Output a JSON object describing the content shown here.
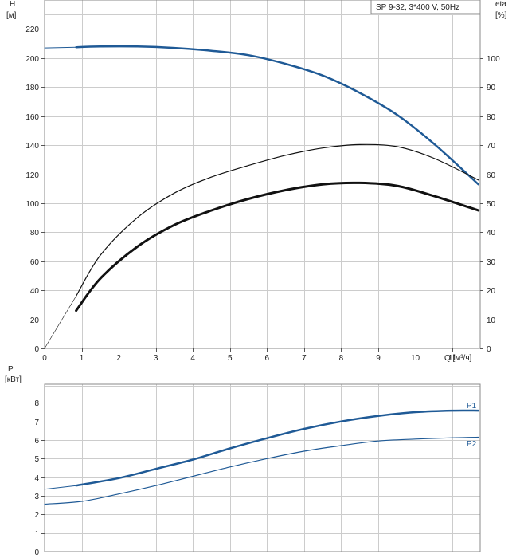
{
  "legend_box": "SP 9-32, 3*400 V, 50Hz",
  "colors": {
    "blue": "#1f5a96",
    "black": "#111111",
    "grid": "#cccccc"
  },
  "chart_data": [
    {
      "id": "head",
      "type": "line",
      "x_label": "Q [м³/ч]",
      "y_label_left_1": "H",
      "y_label_left_2": "[м]",
      "y_label_right_1": "eta",
      "y_label_right_2": "[%]",
      "xlim": [
        0,
        11.75
      ],
      "ylim": [
        0,
        240
      ],
      "y2lim": [
        0,
        120
      ],
      "x_ticks": [
        0,
        1,
        2,
        3,
        4,
        5,
        6,
        7,
        8,
        9,
        10,
        11
      ],
      "y_ticks": [
        0,
        20,
        40,
        60,
        80,
        100,
        120,
        140,
        160,
        180,
        200,
        220
      ],
      "y2_ticks": [
        0,
        10,
        20,
        30,
        40,
        50,
        60,
        70,
        80,
        90,
        100
      ],
      "grid": true,
      "series": [
        {
          "color": "blue",
          "width": 2.5,
          "axis": "left",
          "x": [
            0.85,
            1.5,
            2.5,
            3.5,
            4.5,
            5.5,
            6.5,
            7.5,
            8.5,
            9.5,
            10.5,
            11.7
          ],
          "y": [
            207.5,
            208,
            208,
            207,
            205,
            202,
            196,
            188,
            176,
            161,
            141,
            113
          ]
        },
        {
          "color": "blue",
          "width": 1,
          "axis": "left",
          "x": [
            0,
            0.85
          ],
          "y": [
            207,
            207.5
          ]
        },
        {
          "color": "black",
          "width": 1.2,
          "axis": "right",
          "x": [
            0.85,
            1.5,
            2.5,
            3.5,
            4.5,
            5.5,
            6.5,
            7.5,
            8.5,
            9.5,
            10.5,
            11.7
          ],
          "y": [
            18,
            32,
            45,
            53.5,
            59,
            63,
            66.5,
            69,
            70.2,
            69.5,
            65.5,
            58
          ]
        },
        {
          "color": "black",
          "width": 3,
          "axis": "right",
          "x": [
            0.85,
            1.5,
            2.5,
            3.5,
            4.5,
            5.5,
            6.5,
            7.5,
            8.5,
            9.5,
            10.5,
            11.7
          ],
          "y": [
            13,
            24,
            35,
            42.5,
            47.5,
            51.5,
            54.5,
            56.5,
            57,
            56,
            52.5,
            47.5
          ]
        },
        {
          "color": "black",
          "width": 0.6,
          "axis": "right",
          "x": [
            0,
            0.85
          ],
          "y": [
            0,
            18
          ]
        }
      ]
    },
    {
      "id": "power",
      "type": "line",
      "y_label_left_1": "P",
      "y_label_left_2": "[кВт]",
      "xlim": [
        0,
        11.75
      ],
      "ylim": [
        0,
        9
      ],
      "y_ticks": [
        0,
        1,
        2,
        3,
        4,
        5,
        6,
        7,
        8
      ],
      "grid": true,
      "series": [
        {
          "name": "P1",
          "color": "blue",
          "width": 2.5,
          "x": [
            0.85,
            2,
            3,
            4,
            5,
            6,
            7,
            8,
            9,
            10,
            11,
            11.7
          ],
          "y": [
            3.55,
            3.95,
            4.45,
            4.95,
            5.55,
            6.1,
            6.6,
            7.0,
            7.3,
            7.5,
            7.58,
            7.58
          ]
        },
        {
          "color": "blue",
          "width": 1,
          "x": [
            0,
            0.85
          ],
          "y": [
            3.35,
            3.55
          ]
        },
        {
          "name": "P2",
          "color": "blue",
          "width": 1.2,
          "x": [
            0,
            1,
            2,
            3,
            4,
            5,
            6,
            7,
            8,
            9,
            10,
            11,
            11.7
          ],
          "y": [
            2.55,
            2.7,
            3.1,
            3.55,
            4.05,
            4.55,
            5.0,
            5.4,
            5.7,
            5.95,
            6.05,
            6.12,
            6.15
          ]
        }
      ]
    }
  ]
}
